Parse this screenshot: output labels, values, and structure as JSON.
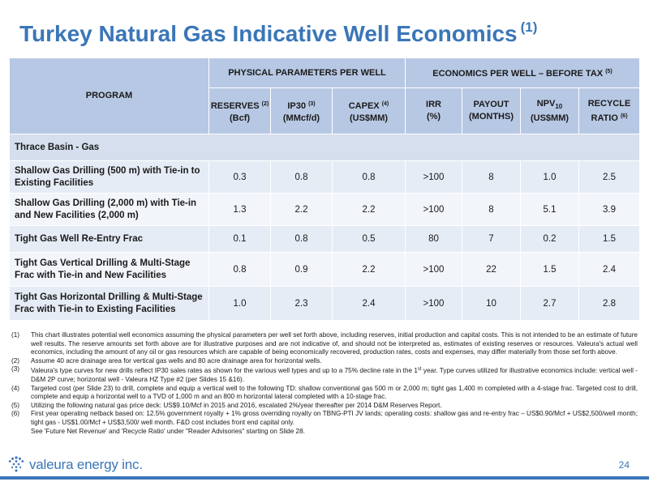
{
  "slide": {
    "title": "Turkey Natural Gas Indicative Well Economics",
    "title_note": "(1)",
    "page_number": "24",
    "logo_text": "valeura energy inc."
  },
  "table": {
    "program_header": "PROGRAM",
    "group_physical": "PHYSICAL PARAMETERS PER WELL",
    "group_economics": "ECONOMICS PER WELL – BEFORE TAX",
    "group_economics_note": "(5)",
    "columns": [
      {
        "label": "RESERVES",
        "note": "(2)",
        "unit": "(Bcf)"
      },
      {
        "label": "IP30",
        "note": "(3)",
        "unit": "(MMcf/d)"
      },
      {
        "label": "CAPEX",
        "note": "(4)",
        "unit": "(US$MM)"
      },
      {
        "label": "IRR",
        "note": "",
        "unit": "(%)"
      },
      {
        "label": "PAYOUT",
        "note": "",
        "unit": "(MONTHS)"
      },
      {
        "label": "NPV",
        "note": "",
        "unit": "(US$MM)",
        "subscript": "10"
      },
      {
        "label": "RECYCLE",
        "label2": "RATIO",
        "note": "(6)",
        "unit": ""
      }
    ],
    "section": "Thrace Basin - Gas",
    "rows": [
      {
        "program": "Shallow Gas Drilling (500 m) with Tie-in to Existing Facilities",
        "reserves": "0.3",
        "ip30": "0.8",
        "capex": "0.8",
        "irr": ">100",
        "payout": "8",
        "npv": "1.0",
        "recycle": "2.5"
      },
      {
        "program": "Shallow Gas Drilling (2,000 m) with Tie-in and New Facilities  (2,000 m)",
        "reserves": "1.3",
        "ip30": "2.2",
        "capex": "2.2",
        "irr": ">100",
        "payout": "8",
        "npv": "5.1",
        "recycle": "3.9"
      },
      {
        "program": "Tight Gas Well Re-Entry Frac",
        "reserves": "0.1",
        "ip30": "0.8",
        "capex": "0.5",
        "irr": "80",
        "payout": "7",
        "npv": "0.2",
        "recycle": "1.5"
      },
      {
        "program": "Tight Gas Vertical Drilling & Multi-Stage Frac with Tie-in and New Facilities",
        "reserves": "0.8",
        "ip30": "0.9",
        "capex": "2.2",
        "irr": ">100",
        "payout": "22",
        "npv": "1.5",
        "recycle": "2.4"
      },
      {
        "program": "Tight Gas Horizontal Drilling & Multi-Stage Frac with Tie-in to Existing Facilities",
        "reserves": "1.0",
        "ip30": "2.3",
        "capex": "2.4",
        "irr": ">100",
        "payout": "10",
        "npv": "2.7",
        "recycle": "2.8"
      }
    ]
  },
  "notes": [
    {
      "num": "(1)",
      "text": "This chart illustrates potential well economics assuming the physical parameters per well set forth above, including reserves, initial production and capital costs.  This is not intended to be an estimate of future well results. The reserve amounts set forth above are for illustrative purposes and are not indicative of, and should not be interpreted as, estimates of existing reserves or resources.  Valeura's actual well economics, including the amount of any oil or gas resources which are capable of being economically recovered, production rates, costs and expenses, may differ materially from those set forth above."
    },
    {
      "num": "(2)",
      "text": "Assume 40 acre drainage area for vertical gas wells and 80 acre drainage area for horizontal wells."
    },
    {
      "num": "(3)",
      "text": "Valeura's type curves for new drills reflect IP30  sales rates as shown for the various well types and up to a 75% decline rate in the 1st year. Type curves utilized for illustrative economics include: vertical well - D&M 2P curve; horizontal well - Valeura HZ Type #2 (per Slides 15 &16)."
    },
    {
      "num": "(4)",
      "text": "Targeted cost (per Slide 23) to drill, complete and equip a vertical well to the following TD: shallow conventional gas 500 m or 2,000 m;  tight gas  1,400 m completed with a 4-stage frac. Targeted  cost to drill, complete and equip a horizontal well to a TVD of 1,000 m and an 800 m horizontal lateral completed with a 10-stage frac."
    },
    {
      "num": "(5)",
      "text": "Utilizing the following natural gas price deck: US$9.10/Mcf  in 2015 and 2016, escalated 2%/year thereafter per 2014 D&M Reserves Report."
    },
    {
      "num": "(6)",
      "text": "First year operating netback based on: 12.5% government royalty + 1% gross overriding royalty on TBNG-PTI JV lands; operating costs: shallow gas and re-entry frac – US$0.90/Mcf + US$2,500/well month;  tight gas - US$1.00/Mcf + US$3,500/ well month. F&D cost includes front end capital only."
    },
    {
      "num": "",
      "text": "See 'Future Net Revenue' and 'Recycle Ratio' under \"Reader Advisories\" starting on Slide 28."
    }
  ],
  "colors": {
    "brand_blue": "#3a76b8",
    "header_fill": "#b7c8e4",
    "section_fill": "#d5dfee",
    "row_fill_a": "#e6ecf6",
    "row_fill_b": "#f2f5fa"
  }
}
